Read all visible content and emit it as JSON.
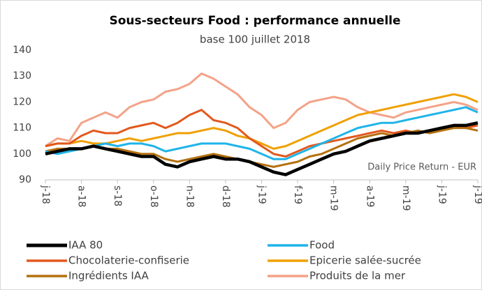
{
  "chart_data": {
    "type": "line",
    "title": "Sous-secteurs Food : performance annuelle",
    "subtitle": "base 100 juillet 2018",
    "annotation": "Daily Price Return - EUR",
    "categories": [
      "j-18",
      null,
      null,
      "a-18",
      null,
      null,
      "s-18",
      null,
      null,
      "o-18",
      null,
      null,
      "n-18",
      null,
      null,
      "d-18",
      null,
      null,
      "j-19",
      null,
      null,
      "f-19",
      null,
      null,
      "m-19",
      null,
      null,
      "a-19",
      null,
      null,
      "m-19",
      null,
      null,
      "j-19",
      null,
      null,
      "j-19"
    ],
    "ylim": [
      90,
      140
    ],
    "yticks": [
      90,
      100,
      110,
      120,
      130,
      140
    ],
    "grid": false,
    "series": [
      {
        "name": "IAA 80",
        "color": "#000000",
        "values": [
          100,
          101,
          102,
          102,
          103,
          102,
          101,
          100,
          99,
          99,
          96,
          95,
          97,
          98,
          99,
          98,
          98,
          97,
          95,
          93,
          92,
          94,
          96,
          98,
          100,
          101,
          103,
          105,
          106,
          107,
          108,
          108,
          109,
          110,
          111,
          111,
          112
        ]
      },
      {
        "name": "Food",
        "color": "#1fb4ea",
        "values": [
          101,
          100,
          101,
          102,
          103,
          104,
          103,
          104,
          104,
          103,
          101,
          102,
          103,
          104,
          104,
          104,
          103,
          102,
          100,
          98,
          98,
          100,
          102,
          104,
          106,
          108,
          110,
          111,
          112,
          112,
          113,
          114,
          115,
          116,
          117,
          118,
          116
        ]
      },
      {
        "name": "Chocolaterie-confiserie",
        "color": "#e2581e",
        "values": [
          103,
          104,
          104,
          107,
          109,
          108,
          108,
          110,
          111,
          112,
          110,
          112,
          115,
          117,
          113,
          112,
          110,
          106,
          103,
          100,
          99,
          101,
          103,
          104,
          105,
          106,
          107,
          108,
          109,
          108,
          109,
          108,
          109,
          110,
          111,
          110,
          111
        ]
      },
      {
        "name": "Epicerie salée-sucrée",
        "color": "#f0a000",
        "values": [
          103,
          104,
          104,
          105,
          104,
          104,
          105,
          106,
          105,
          106,
          107,
          108,
          108,
          109,
          110,
          109,
          107,
          106,
          104,
          102,
          103,
          105,
          107,
          109,
          111,
          113,
          115,
          116,
          117,
          118,
          119,
          120,
          121,
          122,
          123,
          122,
          120
        ]
      },
      {
        "name": "Ingrédients IAA",
        "color": "#b4700e",
        "values": [
          101,
          102,
          102,
          102,
          103,
          102,
          102,
          101,
          100,
          100,
          98,
          97,
          98,
          99,
          100,
          99,
          98,
          97,
          96,
          95,
          96,
          97,
          99,
          100,
          102,
          104,
          106,
          107,
          108,
          107,
          108,
          109,
          108,
          109,
          110,
          110,
          109
        ]
      },
      {
        "name": "Produits de la mer",
        "color": "#f4a287",
        "values": [
          103,
          106,
          105,
          112,
          114,
          116,
          114,
          118,
          120,
          121,
          124,
          125,
          127,
          131,
          129,
          126,
          123,
          118,
          115,
          110,
          112,
          117,
          120,
          121,
          122,
          121,
          118,
          116,
          115,
          114,
          116,
          117,
          118,
          119,
          120,
          119,
          117
        ]
      }
    ]
  }
}
